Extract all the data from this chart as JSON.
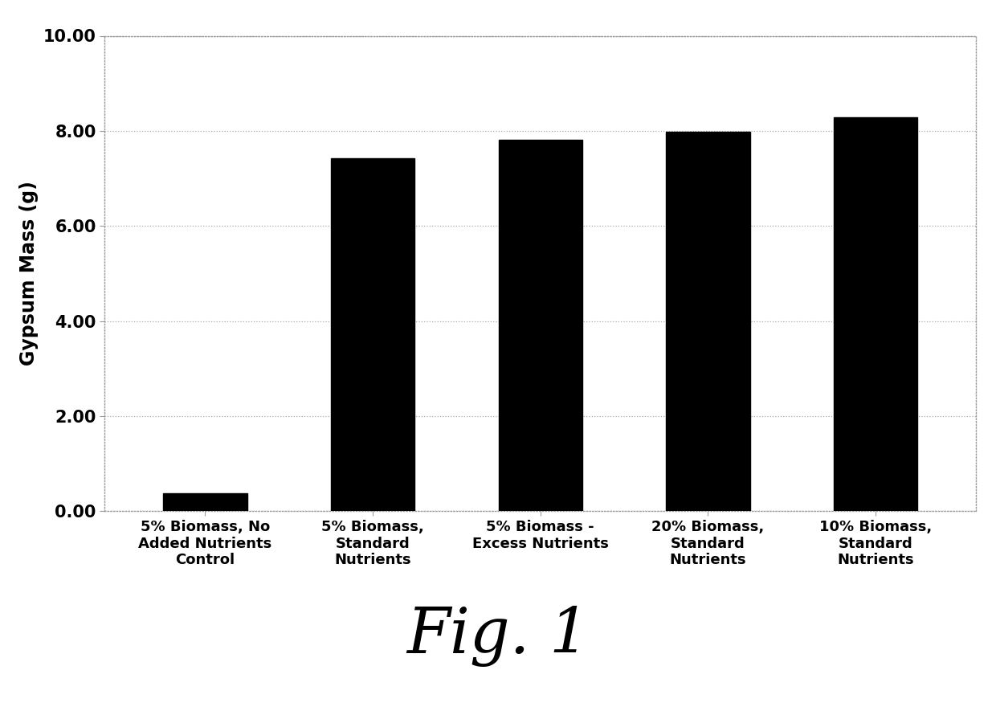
{
  "categories": [
    "5% Biomass, No\nAdded Nutrients\nControl",
    "5% Biomass,\nStandard\nNutrients",
    "5% Biomass -\nExcess Nutrients",
    "20% Biomass,\nStandard\nNutrients",
    "10% Biomass,\nStandard\nNutrients"
  ],
  "values": [
    0.38,
    7.42,
    7.82,
    7.98,
    8.28
  ],
  "bar_color": "#000000",
  "ylabel": "Gypsum Mass (g)",
  "ylim": [
    0,
    10.0
  ],
  "yticks": [
    0.0,
    2.0,
    4.0,
    6.0,
    8.0,
    10.0
  ],
  "ytick_labels": [
    "0.00",
    "2.00",
    "4.00",
    "6.00",
    "8.00",
    "10.00"
  ],
  "fig_label": "Fig. 1",
  "background_color": "#ffffff",
  "bar_width": 0.5,
  "grid_color": "#aaaaaa",
  "grid_linestyle": ":",
  "ylabel_fontsize": 17,
  "tick_fontsize": 15,
  "xtick_fontsize": 13,
  "fig_label_fontsize": 56
}
